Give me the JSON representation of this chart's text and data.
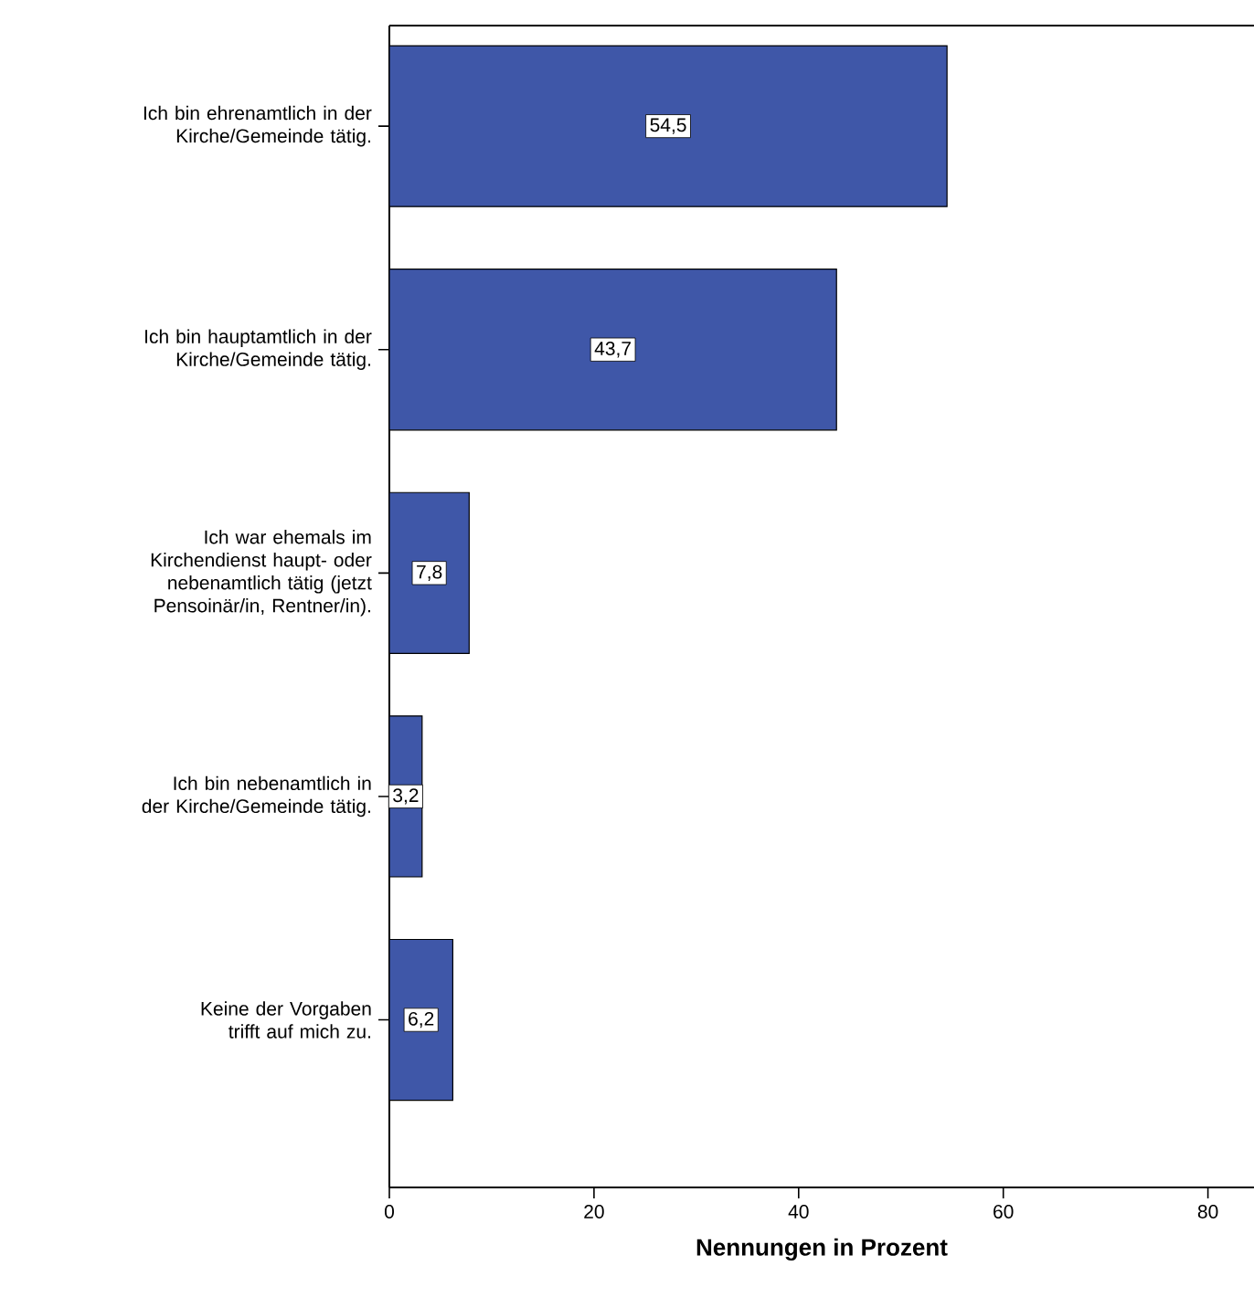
{
  "chart_data": {
    "type": "bar",
    "orientation": "horizontal",
    "categories": [
      "Ich bin ehrenamtlich in der Kirche/Gemeinde tätig.",
      "Ich bin hauptamtlich in der Kirche/Gemeinde tätig.",
      "Ich war ehemals im Kirchendienst haupt- oder nebenamtlich tätig (jetzt Pensoinär/in, Rentner/in).",
      "Ich bin nebenamtlich in der Kirche/Gemeinde tätig.",
      "Keine der Vorgaben trifft auf mich zu."
    ],
    "values": [
      54.5,
      43.7,
      7.8,
      3.2,
      6.2
    ],
    "value_labels": [
      "54,5",
      "43,7",
      "7,8",
      "3,2",
      "6,2"
    ],
    "color": "#3f57a8",
    "xlim": [
      0,
      84.5
    ],
    "xticks": [
      0,
      20,
      40,
      60,
      80
    ],
    "xlabel": "Nennungen in Prozent"
  }
}
